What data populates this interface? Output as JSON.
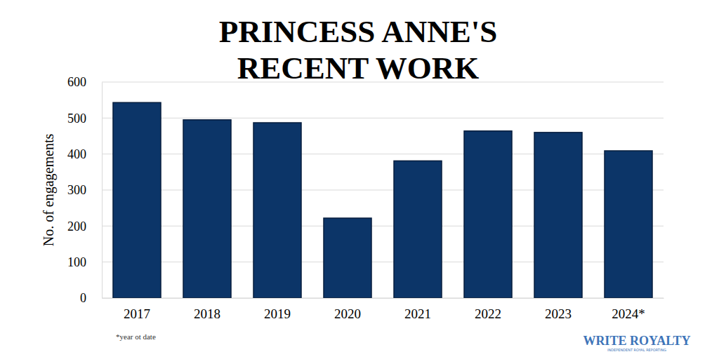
{
  "chart_data": {
    "type": "bar",
    "title": "PRINCESS ANNE'S\nRECENT WORK",
    "y_label": "No. of engagements",
    "categories": [
      "2017",
      "2018",
      "2019",
      "2020",
      "2021",
      "2022",
      "2023",
      "2024*"
    ],
    "values": [
      543,
      495,
      487,
      222,
      381,
      464,
      460,
      409
    ],
    "color": "#0c3568",
    "ylim": [
      0,
      600
    ],
    "yticks": [
      0,
      100,
      200,
      300,
      400,
      500,
      600
    ],
    "grid": true,
    "annotations": [
      "*year ot date",
      "WRITE ROYALTY",
      "INDEPENDENT ROYAL REPORTING"
    ]
  }
}
